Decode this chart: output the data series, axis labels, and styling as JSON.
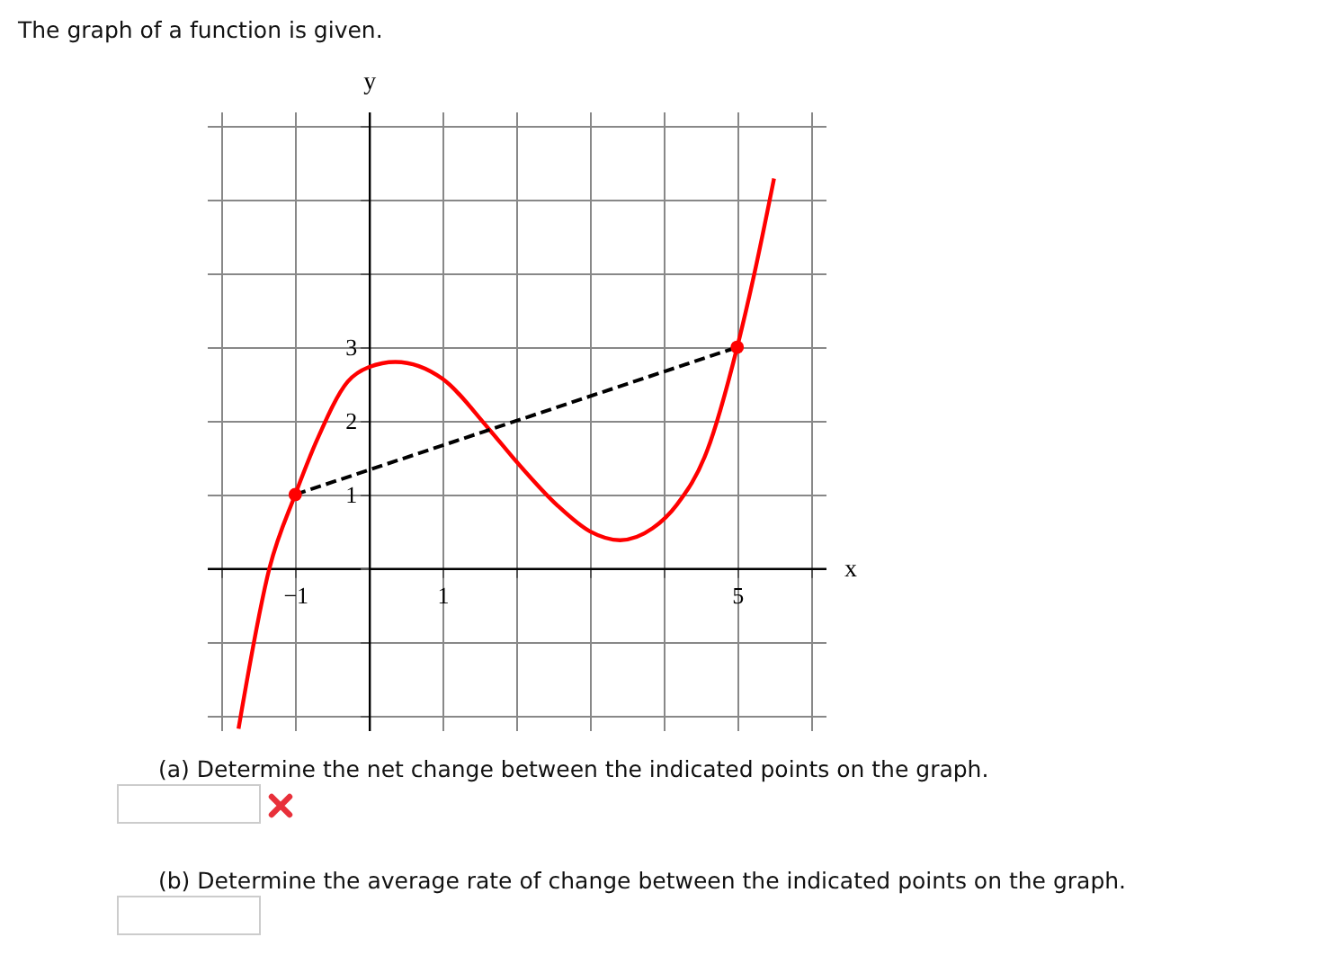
{
  "chart_data": {
    "type": "line",
    "title": "The graph of a function is given.",
    "xlabel": "x",
    "ylabel": "y",
    "xlim": [
      -2.2,
      6.2
    ],
    "ylim": [
      -2.2,
      6.2
    ],
    "xticks": [
      {
        "value": -2,
        "label": null
      },
      {
        "value": -1,
        "label": "−1"
      },
      {
        "value": 0,
        "label": null
      },
      1,
      {
        "value": 2,
        "label": null
      },
      {
        "value": 3,
        "label": null
      },
      {
        "value": 4,
        "label": null
      },
      5,
      {
        "value": 6,
        "label": null
      }
    ],
    "yticks": [
      {
        "value": -2,
        "label": null
      },
      {
        "value": -1,
        "label": null
      },
      {
        "value": 0,
        "label": null
      },
      1,
      2,
      3,
      {
        "value": 4,
        "label": null
      },
      {
        "value": 5,
        "label": null
      },
      {
        "value": 6,
        "label": null
      }
    ],
    "grid": true,
    "series": [
      {
        "color": "#ff0000",
        "marker": "none",
        "x": [
          -1.77,
          -1.35,
          -1,
          -0.7,
          -0.29,
          0,
          0.36,
          1,
          1.62,
          2,
          2.55,
          3,
          3.41,
          3.85,
          4.18,
          4.59,
          5,
          5.24,
          5.5
        ],
        "values": [
          -2.18,
          0,
          1,
          1.75,
          2.53,
          2.73,
          2.8,
          2.57,
          1.9,
          1.45,
          0.86,
          0.5,
          0.38,
          0.54,
          0.86,
          1.59,
          3,
          4.03,
          5.29
        ]
      },
      {
        "type": "line",
        "color": "#000000",
        "line_style": "dashed",
        "marker": "none",
        "x": [
          -1,
          5
        ],
        "values": [
          1,
          3
        ]
      },
      {
        "type": "scatter",
        "color": "#ff0000",
        "marker": "circle",
        "x": [
          -1,
          5
        ],
        "values": [
          1,
          3
        ]
      }
    ],
    "annotations": [
      "(a) Determine the net change between the indicated points on the graph.",
      "(b) Determine the average rate of change between the indicated points on the graph."
    ]
  }
}
